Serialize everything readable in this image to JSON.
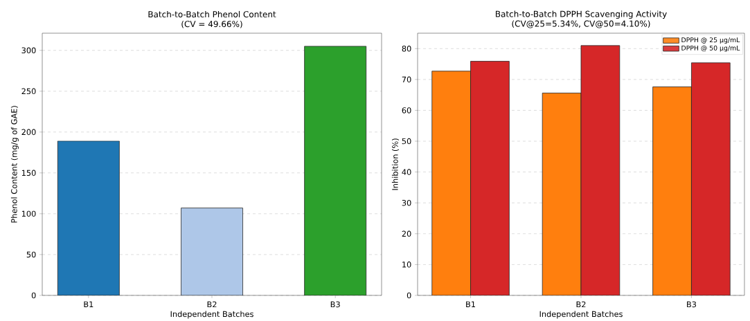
{
  "chart_data": [
    {
      "type": "bar",
      "title": "Batch-to-Batch Phenol Content",
      "subtitle": "(CV = 49.66%)",
      "xlabel": "Independent Batches",
      "ylabel": "Phenol Content (mg/g of GAE)",
      "categories": [
        "B1",
        "B2",
        "B3"
      ],
      "values": [
        189,
        107,
        305
      ],
      "colors": [
        "#1f77b4",
        "#aec7e8",
        "#2ca02c"
      ],
      "ylim": [
        0,
        321
      ],
      "yticks": [
        0,
        50,
        100,
        150,
        200,
        250,
        300
      ],
      "grid": "y"
    },
    {
      "type": "bar",
      "title": "Batch-to-Batch DPPH Scavenging Activity",
      "subtitle": "(CV@25=5.34%, CV@50=4.10%)",
      "xlabel": "Independent Batches",
      "ylabel": "Inhibition (%)",
      "categories": [
        "B1",
        "B2",
        "B3"
      ],
      "series": [
        {
          "name": "DPPH @ 25 µg/mL",
          "color": "#ff7f0e",
          "values": [
            72.7,
            65.6,
            67.6
          ]
        },
        {
          "name": "DPPH @ 50 µg/mL",
          "color": "#d62728",
          "values": [
            75.9,
            81.0,
            75.4
          ]
        }
      ],
      "ylim": [
        0,
        85
      ],
      "yticks": [
        0,
        10,
        20,
        30,
        40,
        50,
        60,
        70,
        80
      ],
      "grid": "y",
      "legend": "top right"
    }
  ]
}
